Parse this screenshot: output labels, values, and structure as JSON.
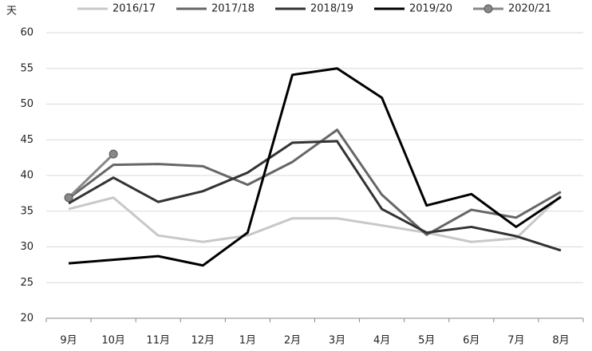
{
  "chart_data": {
    "type": "line",
    "y_label": "天",
    "categories": [
      "9月",
      "10月",
      "11月",
      "12月",
      "1月",
      "2月",
      "3月",
      "4月",
      "5月",
      "6月",
      "7月",
      "8月"
    ],
    "ylim": [
      20,
      60
    ],
    "yticks": [
      20,
      25,
      30,
      35,
      40,
      45,
      50,
      55,
      60
    ],
    "grid": true,
    "legend": "top",
    "series": [
      {
        "name": "2016/17",
        "color": "#c8c8c8",
        "values": [
          35.3,
          36.9,
          31.6,
          30.7,
          31.6,
          34.0,
          34.0,
          33.0,
          32.0,
          30.7,
          31.2,
          37.2
        ]
      },
      {
        "name": "2017/18",
        "color": "#666666",
        "values": [
          36.8,
          41.5,
          41.6,
          41.3,
          38.7,
          41.9,
          46.4,
          37.3,
          31.7,
          35.2,
          34.1,
          37.7
        ]
      },
      {
        "name": "2018/19",
        "color": "#333333",
        "values": [
          36.1,
          39.7,
          36.3,
          37.8,
          40.4,
          44.6,
          44.8,
          35.3,
          32.0,
          32.8,
          31.5,
          29.5
        ]
      },
      {
        "name": "2019/20",
        "color": "#000000",
        "values": [
          27.7,
          28.2,
          28.7,
          27.4,
          32.0,
          54.1,
          55.0,
          50.9,
          35.8,
          37.4,
          32.8,
          37.0
        ]
      },
      {
        "name": "2020/21",
        "color": "#888888",
        "marker": true,
        "values": [
          36.9,
          43.0,
          null,
          null,
          null,
          null,
          null,
          null,
          null,
          null,
          null,
          null
        ]
      }
    ]
  }
}
